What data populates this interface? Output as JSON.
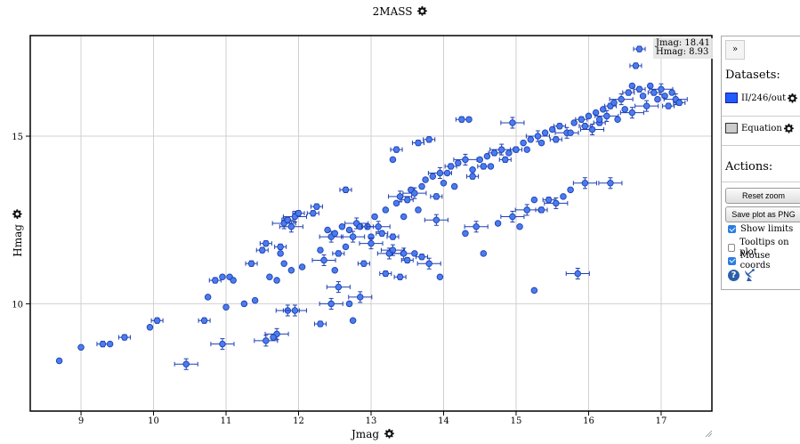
{
  "chart": {
    "title": "2MASS",
    "xlabel": "Jmag",
    "ylabel": "Hmag"
  },
  "mouse_coords": {
    "line1": "Jmag: 18.41",
    "line2": "Hmag: 8.93"
  },
  "panel": {
    "collapse_label": "»",
    "datasets_title": "Datasets:",
    "datasets": [
      {
        "label": "II/246/out",
        "color": "#1f5bff",
        "border": "#1a1a9a"
      },
      {
        "label": "Equation",
        "color": "#cccccc",
        "border": "#333333"
      }
    ],
    "actions_title": "Actions:",
    "buttons": [
      "Reset zoom",
      "Save plot as PNG"
    ],
    "checkboxes": [
      {
        "label": "Show limits",
        "checked": true
      },
      {
        "label": "Tooltips on plot",
        "checked": false
      },
      {
        "label": "Mouse coords",
        "checked": true
      }
    ],
    "icons": [
      "help-icon",
      "satellite-dish-icon"
    ]
  },
  "chart_data": {
    "type": "scatter",
    "title": "2MASS",
    "xlabel": "Jmag",
    "ylabel": "Hmag",
    "xlim": [
      8.3,
      17.7
    ],
    "ylim": [
      6.8,
      18.0
    ],
    "xticks": [
      9,
      10,
      11,
      12,
      13,
      14,
      15,
      16,
      17
    ],
    "yticks": [
      10,
      15
    ],
    "grid": true,
    "marker_color": "#4a7cf0",
    "marker_edge": "#1f3fb0",
    "series": [
      {
        "name": "II/246/out",
        "points": [
          [
            8.7,
            8.3,
            0
          ],
          [
            9.0,
            8.7,
            0
          ],
          [
            9.3,
            8.8,
            0.05
          ],
          [
            9.4,
            8.8,
            0
          ],
          [
            9.6,
            9.0,
            0.05
          ],
          [
            9.95,
            9.3,
            0
          ],
          [
            10.05,
            9.5,
            0.05
          ],
          [
            10.45,
            8.2,
            0.1
          ],
          [
            10.7,
            9.5,
            0.05
          ],
          [
            10.75,
            10.2,
            0
          ],
          [
            10.85,
            10.7,
            0.05
          ],
          [
            10.95,
            10.8,
            0
          ],
          [
            11.0,
            9.9,
            0
          ],
          [
            11.05,
            10.8,
            0
          ],
          [
            11.1,
            10.7,
            0
          ],
          [
            10.95,
            8.8,
            0.1
          ],
          [
            11.25,
            10.0,
            0
          ],
          [
            11.35,
            11.2,
            0.05
          ],
          [
            11.4,
            10.1,
            0
          ],
          [
            11.5,
            11.6,
            0.05
          ],
          [
            11.55,
            11.8,
            0.05
          ],
          [
            11.6,
            10.8,
            0
          ],
          [
            11.7,
            10.7,
            0
          ],
          [
            11.75,
            11.5,
            0
          ],
          [
            11.8,
            12.4,
            0.1
          ],
          [
            11.85,
            12.5,
            0.05
          ],
          [
            11.9,
            12.3,
            0.1
          ],
          [
            11.95,
            12.6,
            0.1
          ],
          [
            12.0,
            12.7,
            0.05
          ],
          [
            11.8,
            11.2,
            0
          ],
          [
            11.9,
            11.0,
            0
          ],
          [
            12.05,
            11.1,
            0
          ],
          [
            11.85,
            9.8,
            0.1
          ],
          [
            11.95,
            9.8,
            0.1
          ],
          [
            11.75,
            11.7,
            0.05
          ],
          [
            11.55,
            8.9,
            0.1
          ],
          [
            11.7,
            9.1,
            0.1
          ],
          [
            11.65,
            9.0,
            0
          ],
          [
            12.2,
            12.7,
            0.05
          ],
          [
            12.25,
            12.9,
            0.05
          ],
          [
            12.3,
            9.4,
            0.05
          ],
          [
            12.3,
            11.6,
            0
          ],
          [
            12.35,
            11.3,
            0.1
          ],
          [
            12.4,
            12.2,
            0
          ],
          [
            12.45,
            12.0,
            0.1
          ],
          [
            12.45,
            10.0,
            0.1
          ],
          [
            12.5,
            11.0,
            0
          ],
          [
            12.5,
            12.1,
            0
          ],
          [
            12.55,
            10.5,
            0.1
          ],
          [
            12.55,
            11.5,
            0.05
          ],
          [
            12.6,
            12.3,
            0
          ],
          [
            12.65,
            11.7,
            0
          ],
          [
            12.65,
            13.4,
            0.05
          ],
          [
            12.7,
            12.2,
            0
          ],
          [
            12.75,
            12.0,
            0.1
          ],
          [
            12.7,
            10.0,
            0
          ],
          [
            12.75,
            9.5,
            0
          ],
          [
            12.8,
            12.4,
            0.1
          ],
          [
            12.85,
            10.2,
            0.1
          ],
          [
            12.85,
            12.3,
            0
          ],
          [
            12.9,
            11.2,
            0.05
          ],
          [
            12.95,
            12.3,
            0.05
          ],
          [
            13.0,
            12.0,
            0
          ],
          [
            13.0,
            11.8,
            0.1
          ],
          [
            13.05,
            12.6,
            0
          ],
          [
            13.1,
            12.3,
            0.1
          ],
          [
            13.15,
            12.1,
            0.05
          ],
          [
            13.2,
            12.8,
            0
          ],
          [
            13.2,
            10.9,
            0.05
          ],
          [
            13.25,
            11.5,
            0.1
          ],
          [
            13.3,
            14.3,
            0
          ],
          [
            13.3,
            11.6,
            0.1
          ],
          [
            13.35,
            13.0,
            0
          ],
          [
            13.35,
            14.6,
            0.05
          ],
          [
            13.4,
            13.2,
            0.1
          ],
          [
            13.4,
            10.8,
            0.05
          ],
          [
            13.45,
            11.5,
            0.1
          ],
          [
            13.5,
            13.1,
            0.05
          ],
          [
            13.5,
            11.3,
            0.05
          ],
          [
            13.55,
            13.4,
            0
          ],
          [
            13.6,
            13.3,
            0.1
          ],
          [
            13.6,
            11.5,
            0
          ],
          [
            13.65,
            14.8,
            0.05
          ],
          [
            13.7,
            13.5,
            0
          ],
          [
            13.7,
            11.4,
            0.05
          ],
          [
            13.75,
            13.7,
            0
          ],
          [
            13.8,
            14.9,
            0.05
          ],
          [
            13.8,
            11.2,
            0.1
          ],
          [
            13.85,
            13.8,
            0
          ],
          [
            13.9,
            12.5,
            0.1
          ],
          [
            13.95,
            13.9,
            0.1
          ],
          [
            13.95,
            10.8,
            0
          ],
          [
            14.0,
            13.6,
            0
          ],
          [
            14.05,
            13.9,
            0
          ],
          [
            14.1,
            14.1,
            0.05
          ],
          [
            14.2,
            14.2,
            0
          ],
          [
            14.25,
            15.5,
            0.05
          ],
          [
            14.3,
            12.1,
            0
          ],
          [
            14.3,
            14.3,
            0.1
          ],
          [
            14.35,
            15.5,
            0
          ],
          [
            14.4,
            14.0,
            0
          ],
          [
            14.45,
            12.3,
            0.1
          ],
          [
            14.5,
            14.3,
            0
          ],
          [
            14.55,
            14.1,
            0.05
          ],
          [
            14.55,
            11.5,
            0
          ],
          [
            14.6,
            14.4,
            0
          ],
          [
            14.7,
            14.5,
            0.05
          ],
          [
            14.75,
            12.4,
            0
          ],
          [
            14.8,
            14.6,
            0.1
          ],
          [
            14.9,
            14.5,
            0
          ],
          [
            14.95,
            15.4,
            0.1
          ],
          [
            14.95,
            12.6,
            0.1
          ],
          [
            15.0,
            14.6,
            0.05
          ],
          [
            15.05,
            12.3,
            0
          ],
          [
            15.1,
            14.8,
            0
          ],
          [
            15.15,
            12.8,
            0.1
          ],
          [
            15.2,
            14.9,
            0
          ],
          [
            15.25,
            13.1,
            0
          ],
          [
            15.25,
            10.4,
            0
          ],
          [
            15.3,
            15.0,
            0.1
          ],
          [
            15.35,
            12.8,
            0.05
          ],
          [
            15.4,
            15.1,
            0
          ],
          [
            15.45,
            13.1,
            0.05
          ],
          [
            15.5,
            15.2,
            0
          ],
          [
            15.55,
            13.0,
            0.1
          ],
          [
            15.6,
            15.3,
            0.05
          ],
          [
            15.65,
            13.2,
            0
          ],
          [
            15.7,
            15.1,
            0.1
          ],
          [
            15.75,
            13.4,
            0
          ],
          [
            15.8,
            15.4,
            0
          ],
          [
            15.85,
            10.9,
            0.1
          ],
          [
            15.9,
            15.5,
            0.05
          ],
          [
            15.95,
            13.6,
            0.1
          ],
          [
            16.0,
            15.6,
            0
          ],
          [
            16.05,
            15.2,
            0.1
          ],
          [
            16.1,
            15.7,
            0
          ],
          [
            16.15,
            15.4,
            0.05
          ],
          [
            16.2,
            15.8,
            0
          ],
          [
            16.25,
            15.6,
            0.1
          ],
          [
            16.3,
            15.9,
            0.05
          ],
          [
            16.3,
            13.6,
            0.1
          ],
          [
            16.35,
            16.0,
            0
          ],
          [
            16.4,
            15.5,
            0
          ],
          [
            16.45,
            16.1,
            0.1
          ],
          [
            16.5,
            15.8,
            0
          ],
          [
            16.55,
            16.3,
            0.05
          ],
          [
            16.6,
            16.5,
            0
          ],
          [
            16.6,
            15.7,
            0.1
          ],
          [
            16.65,
            17.1,
            0.05
          ],
          [
            16.7,
            16.4,
            0.05
          ],
          [
            16.7,
            17.6,
            0.05
          ],
          [
            16.75,
            16.2,
            0
          ],
          [
            16.8,
            15.9,
            0.1
          ],
          [
            16.85,
            16.5,
            0
          ],
          [
            16.9,
            16.3,
            0.05
          ],
          [
            16.95,
            16.1,
            0
          ],
          [
            17.0,
            16.4,
            0.1
          ],
          [
            17.05,
            16.2,
            0
          ],
          [
            17.1,
            15.9,
            0.05
          ],
          [
            17.15,
            16.3,
            0
          ],
          [
            17.2,
            16.1,
            0.1
          ],
          [
            17.25,
            16.0,
            0.05
          ],
          [
            13.3,
            12.0,
            0.05
          ],
          [
            13.45,
            12.6,
            0
          ],
          [
            13.65,
            12.8,
            0
          ],
          [
            13.9,
            13.2,
            0.05
          ],
          [
            14.15,
            13.5,
            0
          ],
          [
            14.4,
            13.8,
            0.05
          ],
          [
            14.65,
            14.1,
            0
          ],
          [
            14.85,
            14.3,
            0.05
          ],
          [
            15.15,
            14.6,
            0
          ],
          [
            15.35,
            14.8,
            0
          ],
          [
            15.55,
            14.9,
            0.05
          ],
          [
            15.75,
            15.1,
            0
          ],
          [
            15.95,
            15.3,
            0.05
          ],
          [
            16.15,
            15.5,
            0
          ]
        ]
      }
    ]
  }
}
